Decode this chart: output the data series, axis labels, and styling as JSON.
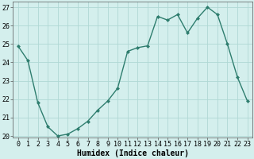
{
  "x": [
    0,
    1,
    2,
    3,
    4,
    5,
    6,
    7,
    8,
    9,
    10,
    11,
    12,
    13,
    14,
    15,
    16,
    17,
    18,
    19,
    20,
    21,
    22,
    23
  ],
  "y": [
    24.9,
    24.1,
    21.8,
    20.5,
    20.0,
    20.1,
    20.4,
    20.8,
    21.4,
    21.9,
    22.6,
    24.6,
    24.8,
    24.9,
    26.5,
    26.3,
    26.6,
    25.6,
    26.4,
    27.0,
    26.6,
    25.0,
    23.2,
    21.9
  ],
  "line_color": "#2e7d6e",
  "marker": "D",
  "marker_size": 2.0,
  "bg_color": "#d4efed",
  "grid_color": "#b0d8d4",
  "xlabel": "Humidex (Indice chaleur)",
  "ylim": [
    20,
    27
  ],
  "xlim": [
    -0.5,
    23.5
  ],
  "yticks": [
    20,
    21,
    22,
    23,
    24,
    25,
    26,
    27
  ],
  "xticks": [
    0,
    1,
    2,
    3,
    4,
    5,
    6,
    7,
    8,
    9,
    10,
    11,
    12,
    13,
    14,
    15,
    16,
    17,
    18,
    19,
    20,
    21,
    22,
    23
  ],
  "xlabel_fontsize": 7,
  "tick_fontsize": 6,
  "line_width": 1.0
}
